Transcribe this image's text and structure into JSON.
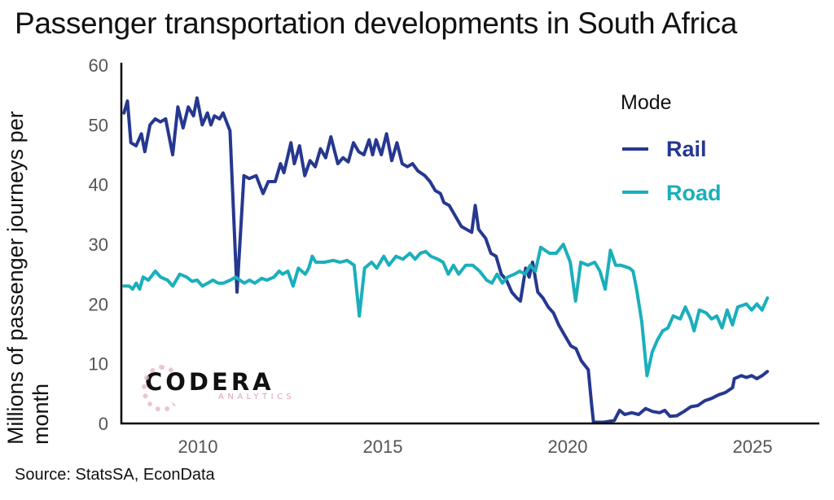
{
  "chart_data": {
    "type": "line",
    "title": "Passenger transportation developments in South Africa",
    "xlabel": "",
    "ylabel": "Millions of passenger journeys per month",
    "source": "Source: StatsSA, EconData",
    "xlim": [
      2008.0,
      2026.8
    ],
    "ylim": [
      0,
      60
    ],
    "x_ticks": [
      2010,
      2015,
      2020,
      2025
    ],
    "y_ticks": [
      0,
      10,
      20,
      30,
      40,
      50,
      60
    ],
    "grid": false,
    "legend": {
      "title": "Mode",
      "position": "top-right"
    },
    "series": [
      {
        "name": "Rail",
        "color": "#26388f",
        "points": [
          [
            2008.0,
            52
          ],
          [
            2008.1,
            54
          ],
          [
            2008.2,
            47
          ],
          [
            2008.35,
            46.5
          ],
          [
            2008.5,
            48.5
          ],
          [
            2008.6,
            45.5
          ],
          [
            2008.75,
            50
          ],
          [
            2008.9,
            51
          ],
          [
            2009.05,
            50.5
          ],
          [
            2009.2,
            51
          ],
          [
            2009.4,
            45
          ],
          [
            2009.55,
            53
          ],
          [
            2009.7,
            49.5
          ],
          [
            2009.85,
            53
          ],
          [
            2010.0,
            51.5
          ],
          [
            2010.1,
            54.5
          ],
          [
            2010.25,
            50
          ],
          [
            2010.4,
            52
          ],
          [
            2010.5,
            50
          ],
          [
            2010.6,
            51.5
          ],
          [
            2010.75,
            51
          ],
          [
            2010.85,
            52
          ],
          [
            2011.05,
            49
          ],
          [
            2011.25,
            22
          ],
          [
            2011.45,
            41.5
          ],
          [
            2011.6,
            41
          ],
          [
            2011.8,
            41.5
          ],
          [
            2012.0,
            38.5
          ],
          [
            2012.15,
            40.5
          ],
          [
            2012.35,
            40.5
          ],
          [
            2012.5,
            43.5
          ],
          [
            2012.6,
            42
          ],
          [
            2012.8,
            47
          ],
          [
            2012.9,
            43.5
          ],
          [
            2013.05,
            46.5
          ],
          [
            2013.2,
            41.5
          ],
          [
            2013.35,
            44
          ],
          [
            2013.5,
            43
          ],
          [
            2013.65,
            46
          ],
          [
            2013.8,
            44.5
          ],
          [
            2013.95,
            48
          ],
          [
            2014.15,
            43.5
          ],
          [
            2014.3,
            44.5
          ],
          [
            2014.45,
            43.8
          ],
          [
            2014.6,
            47
          ],
          [
            2014.75,
            45.5
          ],
          [
            2014.9,
            45
          ],
          [
            2015.05,
            47.5
          ],
          [
            2015.15,
            45
          ],
          [
            2015.25,
            47.5
          ],
          [
            2015.4,
            45
          ],
          [
            2015.55,
            48.5
          ],
          [
            2015.7,
            44
          ],
          [
            2015.85,
            47
          ],
          [
            2016.0,
            43.5
          ],
          [
            2016.15,
            43
          ],
          [
            2016.3,
            43.5
          ],
          [
            2016.45,
            42.3
          ],
          [
            2016.65,
            41.5
          ],
          [
            2016.8,
            40.5
          ],
          [
            2016.95,
            39
          ],
          [
            2017.1,
            38.5
          ],
          [
            2017.2,
            37
          ],
          [
            2017.35,
            36.5
          ],
          [
            2017.5,
            35
          ],
          [
            2017.7,
            33
          ],
          [
            2017.85,
            32.5
          ],
          [
            2018.0,
            32
          ],
          [
            2018.1,
            36.5
          ],
          [
            2018.2,
            32.5
          ],
          [
            2018.4,
            31
          ],
          [
            2018.55,
            28.5
          ],
          [
            2018.7,
            28
          ],
          [
            2018.85,
            25
          ],
          [
            2019.0,
            24
          ],
          [
            2019.15,
            22
          ],
          [
            2019.3,
            21
          ],
          [
            2019.4,
            20.5
          ],
          [
            2019.55,
            26
          ],
          [
            2019.65,
            24.5
          ],
          [
            2019.75,
            27
          ],
          [
            2019.9,
            22
          ],
          [
            2020.05,
            21
          ],
          [
            2020.2,
            19.5
          ],
          [
            2020.35,
            18.5
          ],
          [
            2020.5,
            16.5
          ],
          [
            2020.7,
            14.5
          ],
          [
            2020.85,
            13
          ],
          [
            2021.0,
            12.5
          ],
          [
            2021.15,
            10.5
          ],
          [
            2021.35,
            9
          ],
          [
            2021.45,
            3
          ],
          [
            2021.5,
            0.2
          ],
          [
            2021.8,
            0.2
          ],
          [
            2022.1,
            0.5
          ],
          [
            2022.25,
            2.2
          ],
          [
            2022.4,
            1.5
          ],
          [
            2022.6,
            1.8
          ],
          [
            2022.8,
            1.5
          ],
          [
            2023.0,
            2.5
          ],
          [
            2023.2,
            2
          ],
          [
            2023.4,
            1.8
          ],
          [
            2023.55,
            2.2
          ],
          [
            2023.7,
            1.2
          ],
          [
            2023.9,
            1.3
          ],
          [
            2024.1,
            2
          ],
          [
            2024.3,
            2.8
          ],
          [
            2024.5,
            3
          ],
          [
            2024.7,
            3.8
          ],
          [
            2024.9,
            4.2
          ],
          [
            2025.1,
            4.8
          ],
          [
            2025.3,
            5.2
          ],
          [
            2025.5,
            6
          ],
          [
            2025.55,
            7.5
          ],
          [
            2025.75,
            8
          ],
          [
            2025.9,
            7.7
          ],
          [
            2026.05,
            8
          ],
          [
            2026.2,
            7.5
          ],
          [
            2026.35,
            8
          ],
          [
            2026.5,
            8.7
          ]
        ]
      },
      {
        "name": "Road",
        "color": "#1aafbb",
        "points": [
          [
            2008.0,
            23
          ],
          [
            2008.15,
            23
          ],
          [
            2008.25,
            22.5
          ],
          [
            2008.35,
            23.5
          ],
          [
            2008.45,
            22.5
          ],
          [
            2008.55,
            24.5
          ],
          [
            2008.7,
            24
          ],
          [
            2008.9,
            25.5
          ],
          [
            2009.05,
            24.5
          ],
          [
            2009.25,
            24
          ],
          [
            2009.4,
            23
          ],
          [
            2009.6,
            25
          ],
          [
            2009.8,
            24.5
          ],
          [
            2009.95,
            23.8
          ],
          [
            2010.1,
            24
          ],
          [
            2010.25,
            23
          ],
          [
            2010.4,
            23.5
          ],
          [
            2010.55,
            24
          ],
          [
            2010.7,
            23.5
          ],
          [
            2010.85,
            23.5
          ],
          [
            2011.05,
            24
          ],
          [
            2011.2,
            24.5
          ],
          [
            2011.45,
            23.5
          ],
          [
            2011.6,
            24
          ],
          [
            2011.75,
            23.5
          ],
          [
            2011.95,
            24.3
          ],
          [
            2012.1,
            24
          ],
          [
            2012.3,
            24.5
          ],
          [
            2012.45,
            25.5
          ],
          [
            2012.55,
            25
          ],
          [
            2012.7,
            25.5
          ],
          [
            2012.85,
            23
          ],
          [
            2013.0,
            26
          ],
          [
            2013.2,
            25
          ],
          [
            2013.3,
            26
          ],
          [
            2013.4,
            28
          ],
          [
            2013.5,
            27
          ],
          [
            2013.75,
            27
          ],
          [
            2014.0,
            27.3
          ],
          [
            2014.2,
            27
          ],
          [
            2014.4,
            27.3
          ],
          [
            2014.6,
            26.5
          ],
          [
            2014.75,
            18
          ],
          [
            2014.9,
            26
          ],
          [
            2015.1,
            27
          ],
          [
            2015.25,
            26
          ],
          [
            2015.45,
            28
          ],
          [
            2015.6,
            26.5
          ],
          [
            2015.8,
            28
          ],
          [
            2016.0,
            27.5
          ],
          [
            2016.2,
            28.5
          ],
          [
            2016.35,
            27.5
          ],
          [
            2016.5,
            28.5
          ],
          [
            2016.65,
            28.8
          ],
          [
            2016.8,
            28
          ],
          [
            2017.0,
            27.5
          ],
          [
            2017.15,
            27
          ],
          [
            2017.3,
            25
          ],
          [
            2017.45,
            26.5
          ],
          [
            2017.6,
            25
          ],
          [
            2017.8,
            26.5
          ],
          [
            2018.0,
            26.5
          ],
          [
            2018.2,
            25.5
          ],
          [
            2018.4,
            24
          ],
          [
            2018.55,
            23.5
          ],
          [
            2018.7,
            25
          ],
          [
            2018.85,
            23.5
          ],
          [
            2019.0,
            24.5
          ],
          [
            2019.2,
            25
          ],
          [
            2019.35,
            25.5
          ],
          [
            2019.5,
            25
          ],
          [
            2019.65,
            26.5
          ],
          [
            2019.8,
            25.5
          ],
          [
            2019.95,
            29.5
          ],
          [
            2020.2,
            28.5
          ],
          [
            2020.4,
            28.5
          ],
          [
            2020.6,
            30
          ],
          [
            2020.8,
            27
          ],
          [
            2020.95,
            20.5
          ],
          [
            2021.1,
            27
          ],
          [
            2021.3,
            26.5
          ],
          [
            2021.5,
            27
          ],
          [
            2021.65,
            25.5
          ],
          [
            2021.8,
            22.5
          ],
          [
            2021.95,
            29
          ],
          [
            2022.1,
            26.5
          ],
          [
            2022.25,
            26.5
          ],
          [
            2022.5,
            26
          ],
          [
            2022.6,
            25.5
          ],
          [
            2022.7,
            22.5
          ],
          [
            2022.85,
            17
          ],
          [
            2023.0,
            8
          ],
          [
            2023.15,
            12
          ],
          [
            2023.3,
            14
          ],
          [
            2023.45,
            15.5
          ],
          [
            2023.6,
            16
          ],
          [
            2023.75,
            18
          ],
          [
            2023.95,
            17.5
          ],
          [
            2024.1,
            19.5
          ],
          [
            2024.25,
            17.5
          ],
          [
            2024.35,
            15.5
          ],
          [
            2024.5,
            19
          ],
          [
            2024.7,
            18.5
          ],
          [
            2024.85,
            17.5
          ],
          [
            2025.0,
            18
          ],
          [
            2025.15,
            16
          ],
          [
            2025.3,
            19
          ],
          [
            2025.45,
            16.5
          ],
          [
            2025.6,
            19.5
          ],
          [
            2025.85,
            20
          ],
          [
            2026.0,
            19
          ],
          [
            2026.15,
            20
          ],
          [
            2026.3,
            19
          ],
          [
            2026.45,
            21
          ]
        ]
      }
    ]
  },
  "logo": {
    "main": "CODERA",
    "sub": "ANALYTICS"
  }
}
